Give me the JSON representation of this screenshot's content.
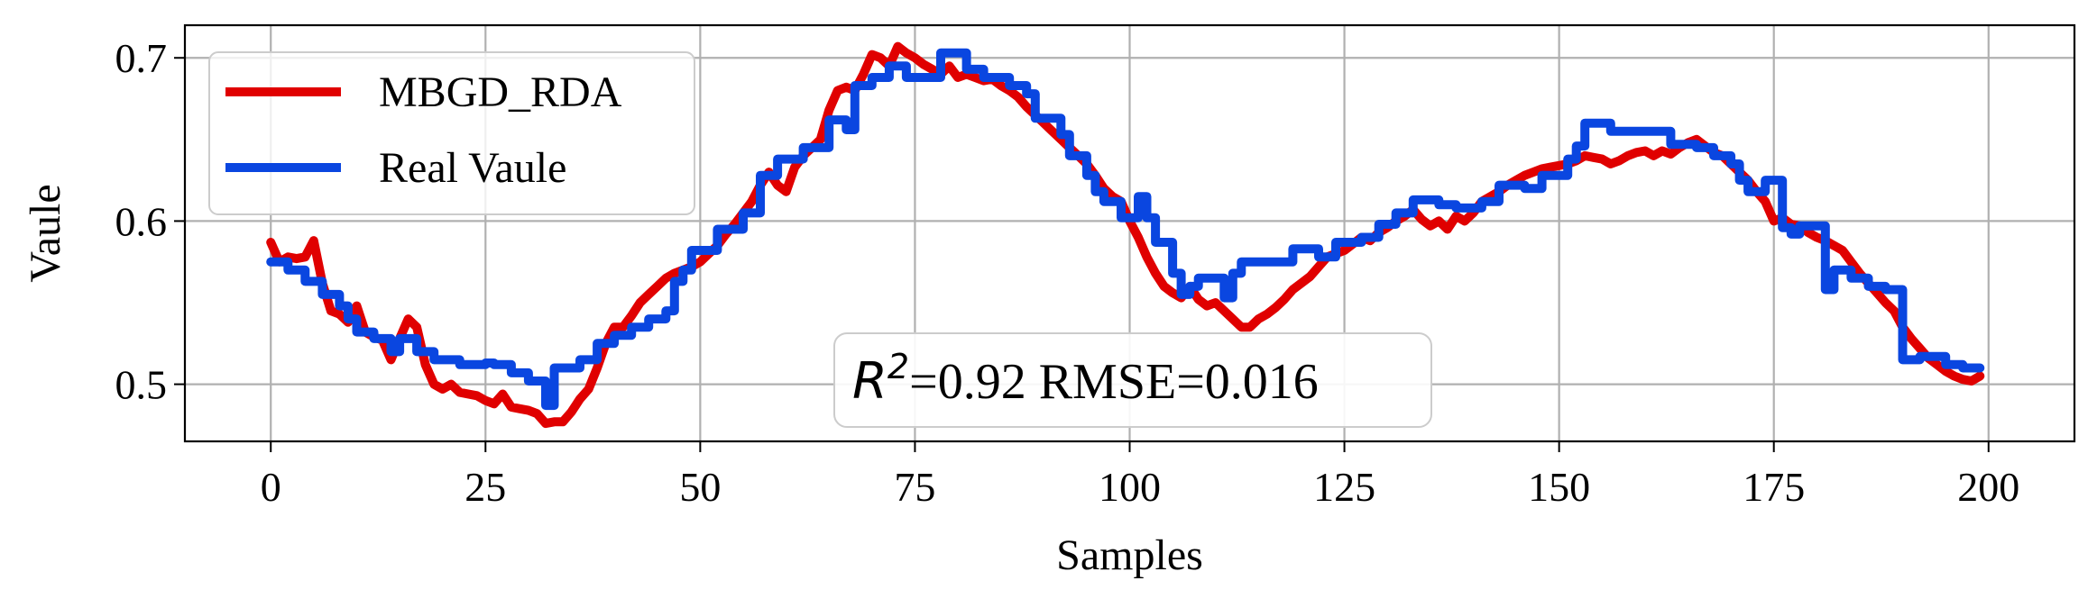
{
  "chart_data": {
    "type": "line",
    "title": "",
    "xlabel": "Samples",
    "ylabel": "Vaule",
    "xlim": [
      -10,
      210
    ],
    "ylim": [
      0.465,
      0.72
    ],
    "xticks": [
      0,
      25,
      50,
      75,
      100,
      125,
      150,
      175,
      200
    ],
    "yticks": [
      0.5,
      0.6,
      0.7
    ],
    "ytick_labels": [
      "0.5",
      "0.6",
      "0.7"
    ],
    "grid": true,
    "legend_position": "top-left",
    "annotation": {
      "r2_symbol": "R",
      "r2_exponent": "2",
      "text": "=0.92 RMSE=0.016"
    },
    "series": [
      {
        "name": "MBGD_RDA",
        "color": "#e00000",
        "step": false,
        "points": [
          [
            0,
            0.587
          ],
          [
            1,
            0.575
          ],
          [
            2,
            0.578
          ],
          [
            3,
            0.577
          ],
          [
            4,
            0.578
          ],
          [
            5,
            0.588
          ],
          [
            6,
            0.562
          ],
          [
            7,
            0.545
          ],
          [
            8,
            0.543
          ],
          [
            9,
            0.538
          ],
          [
            10,
            0.548
          ],
          [
            11,
            0.532
          ],
          [
            12,
            0.529
          ],
          [
            13,
            0.527
          ],
          [
            14,
            0.515
          ],
          [
            15,
            0.528
          ],
          [
            16,
            0.54
          ],
          [
            17,
            0.535
          ],
          [
            18,
            0.512
          ],
          [
            19,
            0.5
          ],
          [
            20,
            0.497
          ],
          [
            21,
            0.5
          ],
          [
            22,
            0.495
          ],
          [
            23,
            0.494
          ],
          [
            24,
            0.493
          ],
          [
            25,
            0.49
          ],
          [
            26,
            0.488
          ],
          [
            27,
            0.494
          ],
          [
            28,
            0.486
          ],
          [
            29,
            0.485
          ],
          [
            30,
            0.484
          ],
          [
            31,
            0.482
          ],
          [
            32,
            0.476
          ],
          [
            33,
            0.477
          ],
          [
            34,
            0.477
          ],
          [
            35,
            0.483
          ],
          [
            36,
            0.491
          ],
          [
            37,
            0.497
          ],
          [
            38,
            0.51
          ],
          [
            39,
            0.525
          ],
          [
            40,
            0.535
          ],
          [
            41,
            0.535
          ],
          [
            42,
            0.542
          ],
          [
            43,
            0.55
          ],
          [
            44,
            0.555
          ],
          [
            45,
            0.56
          ],
          [
            46,
            0.565
          ],
          [
            47,
            0.568
          ],
          [
            48,
            0.57
          ],
          [
            49,
            0.572
          ],
          [
            50,
            0.575
          ],
          [
            51,
            0.58
          ],
          [
            52,
            0.585
          ],
          [
            53,
            0.592
          ],
          [
            54,
            0.598
          ],
          [
            55,
            0.605
          ],
          [
            56,
            0.612
          ],
          [
            57,
            0.622
          ],
          [
            58,
            0.63
          ],
          [
            59,
            0.622
          ],
          [
            60,
            0.618
          ],
          [
            61,
            0.633
          ],
          [
            62,
            0.64
          ],
          [
            63,
            0.645
          ],
          [
            64,
            0.65
          ],
          [
            65,
            0.668
          ],
          [
            66,
            0.68
          ],
          [
            67,
            0.682
          ],
          [
            68,
            0.68
          ],
          [
            69,
            0.69
          ],
          [
            70,
            0.702
          ],
          [
            71,
            0.7
          ],
          [
            72,
            0.695
          ],
          [
            73,
            0.707
          ],
          [
            74,
            0.703
          ],
          [
            75,
            0.7
          ],
          [
            76,
            0.696
          ],
          [
            77,
            0.693
          ],
          [
            78,
            0.69
          ],
          [
            79,
            0.695
          ],
          [
            80,
            0.688
          ],
          [
            81,
            0.69
          ],
          [
            82,
            0.688
          ],
          [
            83,
            0.686
          ],
          [
            84,
            0.687
          ],
          [
            85,
            0.683
          ],
          [
            86,
            0.68
          ],
          [
            87,
            0.676
          ],
          [
            88,
            0.67
          ],
          [
            89,
            0.665
          ],
          [
            90,
            0.66
          ],
          [
            91,
            0.655
          ],
          [
            92,
            0.65
          ],
          [
            93,
            0.645
          ],
          [
            94,
            0.64
          ],
          [
            95,
            0.635
          ],
          [
            96,
            0.628
          ],
          [
            97,
            0.62
          ],
          [
            98,
            0.615
          ],
          [
            99,
            0.612
          ],
          [
            100,
            0.6
          ],
          [
            101,
            0.59
          ],
          [
            102,
            0.578
          ],
          [
            103,
            0.568
          ],
          [
            104,
            0.56
          ],
          [
            105,
            0.556
          ],
          [
            106,
            0.553
          ],
          [
            107,
            0.56
          ],
          [
            108,
            0.552
          ],
          [
            109,
            0.548
          ],
          [
            110,
            0.55
          ],
          [
            111,
            0.545
          ],
          [
            112,
            0.54
          ],
          [
            113,
            0.535
          ],
          [
            114,
            0.535
          ],
          [
            115,
            0.54
          ],
          [
            116,
            0.543
          ],
          [
            117,
            0.547
          ],
          [
            118,
            0.552
          ],
          [
            119,
            0.558
          ],
          [
            120,
            0.562
          ],
          [
            121,
            0.566
          ],
          [
            122,
            0.572
          ],
          [
            123,
            0.578
          ],
          [
            124,
            0.58
          ],
          [
            125,
            0.582
          ],
          [
            126,
            0.586
          ],
          [
            127,
            0.59
          ],
          [
            128,
            0.588
          ],
          [
            129,
            0.593
          ],
          [
            130,
            0.596
          ],
          [
            131,
            0.6
          ],
          [
            132,
            0.603
          ],
          [
            133,
            0.607
          ],
          [
            134,
            0.601
          ],
          [
            135,
            0.597
          ],
          [
            136,
            0.6
          ],
          [
            137,
            0.595
          ],
          [
            138,
            0.603
          ],
          [
            139,
            0.6
          ],
          [
            140,
            0.605
          ],
          [
            141,
            0.612
          ],
          [
            142,
            0.615
          ],
          [
            143,
            0.618
          ],
          [
            144,
            0.622
          ],
          [
            145,
            0.625
          ],
          [
            146,
            0.628
          ],
          [
            147,
            0.63
          ],
          [
            148,
            0.632
          ],
          [
            149,
            0.633
          ],
          [
            150,
            0.634
          ],
          [
            151,
            0.635
          ],
          [
            152,
            0.637
          ],
          [
            153,
            0.64
          ],
          [
            154,
            0.639
          ],
          [
            155,
            0.638
          ],
          [
            156,
            0.635
          ],
          [
            157,
            0.637
          ],
          [
            158,
            0.64
          ],
          [
            159,
            0.642
          ],
          [
            160,
            0.643
          ],
          [
            161,
            0.64
          ],
          [
            162,
            0.643
          ],
          [
            163,
            0.641
          ],
          [
            164,
            0.645
          ],
          [
            165,
            0.648
          ],
          [
            166,
            0.65
          ],
          [
            167,
            0.646
          ],
          [
            168,
            0.642
          ],
          [
            169,
            0.64
          ],
          [
            170,
            0.635
          ],
          [
            171,
            0.63
          ],
          [
            172,
            0.625
          ],
          [
            173,
            0.618
          ],
          [
            174,
            0.612
          ],
          [
            175,
            0.6
          ],
          [
            176,
            0.602
          ],
          [
            177,
            0.598
          ],
          [
            178,
            0.597
          ],
          [
            179,
            0.593
          ],
          [
            180,
            0.59
          ],
          [
            181,
            0.588
          ],
          [
            182,
            0.585
          ],
          [
            183,
            0.582
          ],
          [
            184,
            0.575
          ],
          [
            185,
            0.568
          ],
          [
            186,
            0.562
          ],
          [
            187,
            0.556
          ],
          [
            188,
            0.55
          ],
          [
            189,
            0.545
          ],
          [
            190,
            0.535
          ],
          [
            191,
            0.528
          ],
          [
            192,
            0.522
          ],
          [
            193,
            0.516
          ],
          [
            194,
            0.512
          ],
          [
            195,
            0.508
          ],
          [
            196,
            0.505
          ],
          [
            197,
            0.503
          ],
          [
            198,
            0.502
          ],
          [
            199,
            0.505
          ]
        ]
      },
      {
        "name": "Real Vaule",
        "color": "#0a46e0",
        "step": true,
        "points": [
          [
            0,
            0.575
          ],
          [
            2,
            0.57
          ],
          [
            4,
            0.563
          ],
          [
            6,
            0.555
          ],
          [
            8,
            0.548
          ],
          [
            9,
            0.54
          ],
          [
            10,
            0.532
          ],
          [
            12,
            0.528
          ],
          [
            14,
            0.52
          ],
          [
            15,
            0.528
          ],
          [
            17,
            0.52
          ],
          [
            19,
            0.515
          ],
          [
            22,
            0.512
          ],
          [
            25,
            0.513
          ],
          [
            26,
            0.512
          ],
          [
            28,
            0.507
          ],
          [
            30,
            0.502
          ],
          [
            32,
            0.487
          ],
          [
            33,
            0.51
          ],
          [
            36,
            0.515
          ],
          [
            38,
            0.525
          ],
          [
            40,
            0.53
          ],
          [
            42,
            0.535
          ],
          [
            44,
            0.54
          ],
          [
            46,
            0.545
          ],
          [
            47,
            0.563
          ],
          [
            48,
            0.57
          ],
          [
            49,
            0.582
          ],
          [
            52,
            0.595
          ],
          [
            55,
            0.605
          ],
          [
            57,
            0.628
          ],
          [
            59,
            0.638
          ],
          [
            62,
            0.645
          ],
          [
            65,
            0.662
          ],
          [
            67,
            0.656
          ],
          [
            68,
            0.683
          ],
          [
            70,
            0.688
          ],
          [
            72,
            0.695
          ],
          [
            74,
            0.688
          ],
          [
            78,
            0.703
          ],
          [
            81,
            0.693
          ],
          [
            83,
            0.688
          ],
          [
            86,
            0.683
          ],
          [
            88,
            0.678
          ],
          [
            89,
            0.663
          ],
          [
            92,
            0.653
          ],
          [
            93,
            0.64
          ],
          [
            95,
            0.628
          ],
          [
            96,
            0.618
          ],
          [
            97,
            0.612
          ],
          [
            99,
            0.602
          ],
          [
            101,
            0.615
          ],
          [
            102,
            0.602
          ],
          [
            103,
            0.587
          ],
          [
            105,
            0.568
          ],
          [
            106,
            0.555
          ],
          [
            107,
            0.56
          ],
          [
            108,
            0.565
          ],
          [
            111,
            0.553
          ],
          [
            112,
            0.568
          ],
          [
            113,
            0.575
          ],
          [
            117,
            0.575
          ],
          [
            119,
            0.583
          ],
          [
            122,
            0.578
          ],
          [
            124,
            0.587
          ],
          [
            127,
            0.59
          ],
          [
            129,
            0.598
          ],
          [
            131,
            0.605
          ],
          [
            133,
            0.613
          ],
          [
            136,
            0.61
          ],
          [
            138,
            0.608
          ],
          [
            141,
            0.612
          ],
          [
            143,
            0.622
          ],
          [
            146,
            0.62
          ],
          [
            148,
            0.628
          ],
          [
            151,
            0.638
          ],
          [
            152,
            0.646
          ],
          [
            153,
            0.66
          ],
          [
            156,
            0.655
          ],
          [
            163,
            0.647
          ],
          [
            166,
            0.645
          ],
          [
            168,
            0.64
          ],
          [
            170,
            0.635
          ],
          [
            171,
            0.625
          ],
          [
            172,
            0.618
          ],
          [
            174,
            0.625
          ],
          [
            176,
            0.596
          ],
          [
            177,
            0.592
          ],
          [
            178,
            0.597
          ],
          [
            181,
            0.558
          ],
          [
            182,
            0.57
          ],
          [
            184,
            0.565
          ],
          [
            186,
            0.56
          ],
          [
            188,
            0.558
          ],
          [
            190,
            0.515
          ],
          [
            192,
            0.517
          ],
          [
            195,
            0.512
          ],
          [
            197,
            0.51
          ],
          [
            199,
            0.51
          ]
        ]
      }
    ]
  }
}
